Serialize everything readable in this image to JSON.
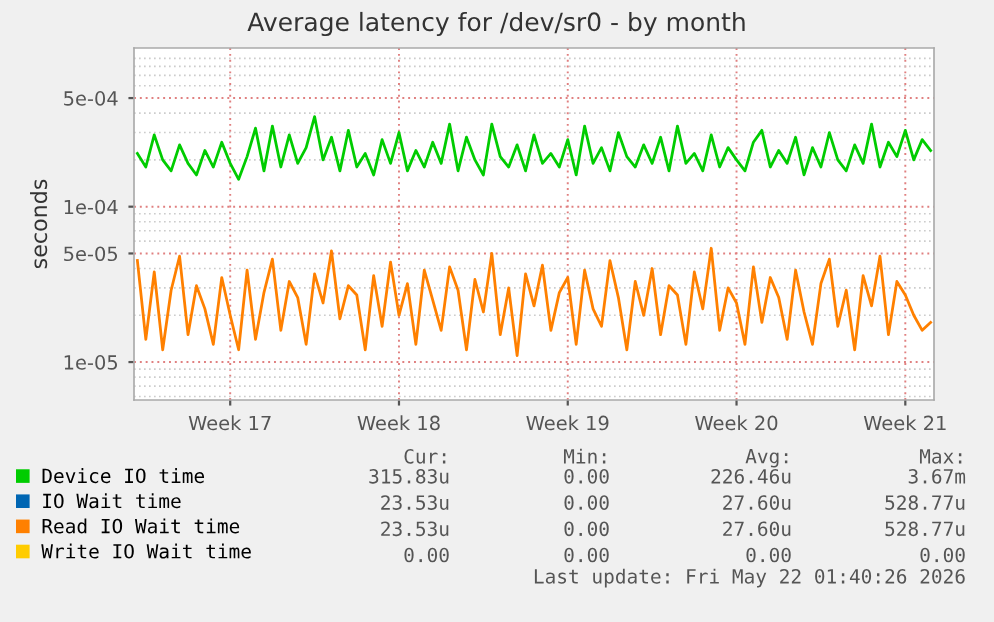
{
  "chart_data": {
    "type": "line",
    "title": "Average latency for /dev/sr0 - by month",
    "ylabel": "seconds",
    "log": "y",
    "ylim": [
      5.7e-06,
      0.00105
    ],
    "yticks": [
      {
        "value": 0.0005,
        "label": "5e-04"
      },
      {
        "value": 0.0001,
        "label": "1e-04"
      },
      {
        "value": 5e-05,
        "label": "5e-05"
      },
      {
        "value": 1e-05,
        "label": "1e-05"
      }
    ],
    "grid": true,
    "legend": "bottom",
    "categories": [
      null,
      null,
      null,
      null,
      null,
      null,
      null,
      null,
      null,
      null,
      null,
      "Week 17",
      null,
      null,
      null,
      null,
      null,
      null,
      null,
      null,
      null,
      null,
      null,
      null,
      null,
      null,
      null,
      null,
      null,
      null,
      null,
      "Week 18",
      null,
      null,
      null,
      null,
      null,
      null,
      null,
      null,
      null,
      null,
      null,
      null,
      null,
      null,
      null,
      null,
      null,
      null,
      null,
      "Week 19",
      null,
      null,
      null,
      null,
      null,
      null,
      null,
      null,
      null,
      null,
      null,
      null,
      null,
      null,
      null,
      null,
      null,
      null,
      null,
      "Week 20",
      null,
      null,
      null,
      null,
      null,
      null,
      null,
      null,
      null,
      null,
      null,
      null,
      null,
      null,
      null,
      null,
      null,
      null,
      null,
      "Week 21",
      null,
      null,
      null
    ],
    "series": [
      {
        "name": "Device IO time",
        "color": "#00cc00",
        "values": [
          0.00022,
          0.00018,
          0.00029,
          0.0002,
          0.00017,
          0.00025,
          0.00019,
          0.00016,
          0.00023,
          0.00018,
          0.00026,
          0.00019,
          0.00015,
          0.00021,
          0.00032,
          0.00017,
          0.00033,
          0.00018,
          0.00029,
          0.00019,
          0.00024,
          0.00038,
          0.0002,
          0.00028,
          0.00017,
          0.00031,
          0.00018,
          0.00022,
          0.00016,
          0.00027,
          0.00019,
          0.0003,
          0.00017,
          0.00023,
          0.00018,
          0.00026,
          0.00019,
          0.00034,
          0.00017,
          0.00028,
          0.0002,
          0.00016,
          0.00034,
          0.00021,
          0.00018,
          0.00025,
          0.00017,
          0.00029,
          0.00019,
          0.00022,
          0.00018,
          0.00027,
          0.00016,
          0.00033,
          0.00019,
          0.00024,
          0.00017,
          0.0003,
          0.00021,
          0.00018,
          0.00025,
          0.00019,
          0.00028,
          0.00017,
          0.00033,
          0.00019,
          0.00022,
          0.00017,
          0.00029,
          0.00018,
          0.00024,
          0.0002,
          0.00017,
          0.00026,
          0.00031,
          0.00018,
          0.00023,
          0.00019,
          0.00028,
          0.00016,
          0.00024,
          0.00018,
          0.0003,
          0.0002,
          0.00017,
          0.00025,
          0.00019,
          0.00034,
          0.00018,
          0.00026,
          0.00021,
          0.00031,
          0.0002,
          0.00027,
          0.00023
        ]
      },
      {
        "name": "IO Wait time",
        "color": "#0066b3",
        "values": [
          null,
          null,
          null,
          null,
          null,
          null,
          null,
          null,
          null,
          null,
          null,
          null,
          null,
          null,
          null,
          null,
          null,
          null,
          null,
          null,
          null,
          null,
          null,
          null,
          null,
          null,
          null,
          null,
          null,
          null,
          null,
          null,
          null,
          null,
          null,
          null,
          null,
          null,
          null,
          null,
          null,
          null,
          null,
          null,
          null,
          null,
          null,
          null,
          null,
          null,
          null,
          null,
          null,
          null,
          null,
          null,
          null,
          null,
          null,
          null,
          null,
          null,
          null,
          null,
          null,
          null,
          null,
          null,
          null,
          null,
          null,
          null,
          null,
          null,
          null,
          null,
          null,
          null,
          null,
          null,
          null,
          null,
          null,
          null,
          null,
          null,
          null,
          null,
          null,
          null,
          null,
          null,
          null,
          null,
          null
        ]
      },
      {
        "name": "Read IO Wait time",
        "color": "#ff8000",
        "values": [
          4.5e-05,
          1.4e-05,
          3.8e-05,
          1.2e-05,
          2.9e-05,
          4.8e-05,
          1.5e-05,
          3.1e-05,
          2.2e-05,
          1.3e-05,
          3.5e-05,
          2e-05,
          1.2e-05,
          3.9e-05,
          1.4e-05,
          2.8e-05,
          4.6e-05,
          1.6e-05,
          3.3e-05,
          2.6e-05,
          1.3e-05,
          3.7e-05,
          2.4e-05,
          5.2e-05,
          1.9e-05,
          3.1e-05,
          2.7e-05,
          1.2e-05,
          3.6e-05,
          1.7e-05,
          4.4e-05,
          2e-05,
          3.2e-05,
          1.3e-05,
          3.9e-05,
          2.5e-05,
          1.6e-05,
          4.1e-05,
          2.9e-05,
          1.2e-05,
          3.4e-05,
          2.1e-05,
          5e-05,
          1.5e-05,
          3e-05,
          1.1e-05,
          3.7e-05,
          2.3e-05,
          4.2e-05,
          1.6e-05,
          2.8e-05,
          3.5e-05,
          1.3e-05,
          3.9e-05,
          2.2e-05,
          1.7e-05,
          4.5e-05,
          2.6e-05,
          1.2e-05,
          3.3e-05,
          2e-05,
          4e-05,
          1.5e-05,
          3.1e-05,
          2.7e-05,
          1.3e-05,
          3.8e-05,
          2.2e-05,
          5.4e-05,
          1.6e-05,
          3e-05,
          2.4e-05,
          1.3e-05,
          4.1e-05,
          1.8e-05,
          3.5e-05,
          2.6e-05,
          1.4e-05,
          3.9e-05,
          2.1e-05,
          1.3e-05,
          3.2e-05,
          4.6e-05,
          1.7e-05,
          2.9e-05,
          1.2e-05,
          3.6e-05,
          2.3e-05,
          4.8e-05,
          1.5e-05,
          3.3e-05,
          2.7e-05,
          2e-05,
          1.6e-05,
          1.8e-05
        ]
      },
      {
        "name": "Write IO Wait time",
        "color": "#ffcc00",
        "values": [
          null,
          null,
          null,
          null,
          null,
          null,
          null,
          null,
          null,
          null,
          null,
          null,
          null,
          null,
          null,
          null,
          null,
          null,
          null,
          null,
          null,
          null,
          null,
          null,
          null,
          null,
          null,
          null,
          null,
          null,
          null,
          null,
          null,
          null,
          null,
          null,
          null,
          null,
          null,
          null,
          null,
          null,
          null,
          null,
          null,
          null,
          null,
          null,
          null,
          null,
          null,
          null,
          null,
          null,
          null,
          null,
          null,
          null,
          null,
          null,
          null,
          null,
          null,
          null,
          null,
          null,
          null,
          null,
          null,
          null,
          null,
          null,
          null,
          null,
          null,
          null,
          null,
          null,
          null,
          null,
          null,
          null,
          null,
          null,
          null,
          null,
          null,
          null,
          null,
          null,
          null,
          null,
          null,
          null,
          null
        ]
      }
    ],
    "annotations": [
      "Cur:",
      "Min:",
      "Avg:",
      "Max:",
      "315.83u",
      "0.00",
      "226.46u",
      "3.67m",
      "23.53u",
      "0.00",
      "27.60u",
      "528.77u",
      "23.53u",
      "0.00",
      "27.60u",
      "528.77u",
      "0.00",
      "0.00",
      "0.00",
      "0.00",
      "Last update: Fri May 22 01:40:26 2026"
    ]
  }
}
